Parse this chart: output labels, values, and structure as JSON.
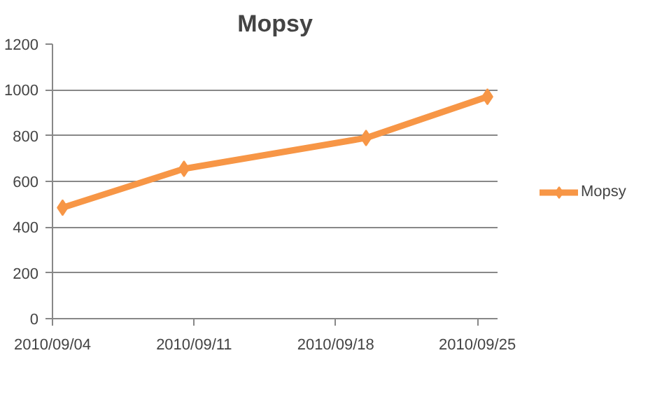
{
  "chart_data": {
    "type": "line",
    "title": "Mopsy",
    "x": [
      "2010-09-04T12:00",
      "2010-09-10T12:00",
      "2010-09-19T12:00",
      "2010-09-25T12:00"
    ],
    "series": [
      {
        "name": "Mopsy",
        "color": "#f79646",
        "values": [
          485,
          655,
          790,
          970
        ]
      }
    ],
    "xlim": [
      "2010-09-04",
      "2010-09-26"
    ],
    "xticks": [
      {
        "value": "2010-09-04",
        "label": "2010/09/04"
      },
      {
        "value": "2010-09-11",
        "label": "2010/09/11"
      },
      {
        "value": "2010-09-18",
        "label": "2010/09/18"
      },
      {
        "value": "2010-09-25",
        "label": "2010/09/25"
      }
    ],
    "ylim": [
      0,
      1200
    ],
    "yticks": [
      0,
      200,
      400,
      600,
      800,
      1000,
      1200
    ],
    "grid": "y",
    "legend": "right",
    "marker": "diamond",
    "line_style": "solid"
  }
}
